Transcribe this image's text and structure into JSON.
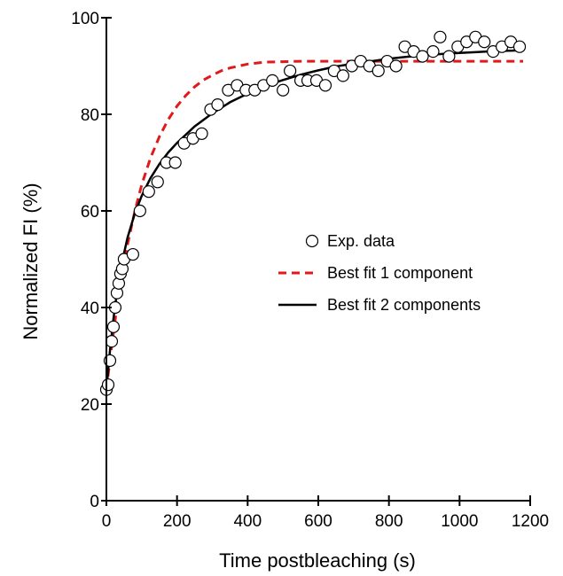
{
  "chart_data": {
    "type": "scatter",
    "title": "",
    "xlabel": "Time postbleaching (s)",
    "ylabel": "Normalized FI (%)",
    "xlim": [
      0,
      1200
    ],
    "ylim": [
      0,
      100
    ],
    "xticks": [
      0,
      200,
      400,
      600,
      800,
      1000,
      1200
    ],
    "yticks": [
      0,
      20,
      40,
      60,
      80,
      100
    ],
    "grid": false,
    "legend_position": "center-right",
    "series": [
      {
        "name": "Exp. data",
        "kind": "points",
        "marker": "open-circle",
        "color": "#000000",
        "x": [
          0,
          5,
          10,
          15,
          20,
          25,
          30,
          35,
          40,
          45,
          50,
          75,
          95,
          120,
          145,
          170,
          195,
          220,
          245,
          270,
          295,
          315,
          345,
          370,
          395,
          420,
          445,
          470,
          500,
          520,
          550,
          570,
          595,
          620,
          645,
          670,
          695,
          720,
          745,
          770,
          795,
          820,
          845,
          870,
          895,
          925,
          945,
          970,
          995,
          1020,
          1045,
          1070,
          1095,
          1120,
          1145,
          1170
        ],
        "y": [
          23,
          24,
          29,
          33,
          36,
          40,
          43,
          45,
          47,
          48,
          50,
          51,
          60,
          64,
          66,
          70,
          70,
          74,
          75,
          76,
          81,
          82,
          85,
          86,
          85,
          85,
          86,
          87,
          85,
          89,
          87,
          87,
          87,
          86,
          89,
          88,
          90,
          91,
          90,
          89,
          91,
          90,
          94,
          93,
          92,
          93,
          96,
          92,
          94,
          95,
          96,
          95,
          93,
          94,
          95,
          94
        ]
      },
      {
        "name": "Best fit 1 component",
        "kind": "line",
        "dash": true,
        "color": "#e0191b",
        "x": [
          0,
          10,
          20,
          30,
          45,
          60,
          80,
          100,
          125,
          150,
          175,
          200,
          225,
          250,
          275,
          300,
          325,
          350,
          400,
          450,
          500,
          550,
          600,
          700,
          800,
          900,
          1000,
          1100,
          1180
        ],
        "y": [
          23.0,
          29.2,
          34.9,
          40.1,
          47.0,
          53.1,
          59.8,
          65.4,
          71.0,
          75.4,
          78.9,
          81.7,
          83.9,
          85.7,
          87.1,
          88.1,
          89.0,
          89.6,
          90.4,
          90.8,
          90.9,
          91.0,
          91.0,
          91.0,
          91.0,
          91.0,
          91.0,
          91.0,
          91.0
        ]
      },
      {
        "name": "Best fit 2 components",
        "kind": "line",
        "dash": false,
        "color": "#000000",
        "x": [
          0,
          10,
          20,
          30,
          45,
          60,
          80,
          100,
          125,
          150,
          175,
          200,
          250,
          300,
          350,
          400,
          450,
          500,
          550,
          600,
          650,
          700,
          750,
          800,
          850,
          900,
          950,
          1000,
          1050,
          1100,
          1150,
          1180
        ],
        "y": [
          23.0,
          31.0,
          37.7,
          43.2,
          49.6,
          54.5,
          59.4,
          63.1,
          66.8,
          69.7,
          72.1,
          74.1,
          77.5,
          80.2,
          82.5,
          84.3,
          85.9,
          87.1,
          88.2,
          89.1,
          89.9,
          90.5,
          91.0,
          91.5,
          91.9,
          92.2,
          92.5,
          92.7,
          92.9,
          93.1,
          93.2,
          93.3
        ]
      }
    ]
  }
}
